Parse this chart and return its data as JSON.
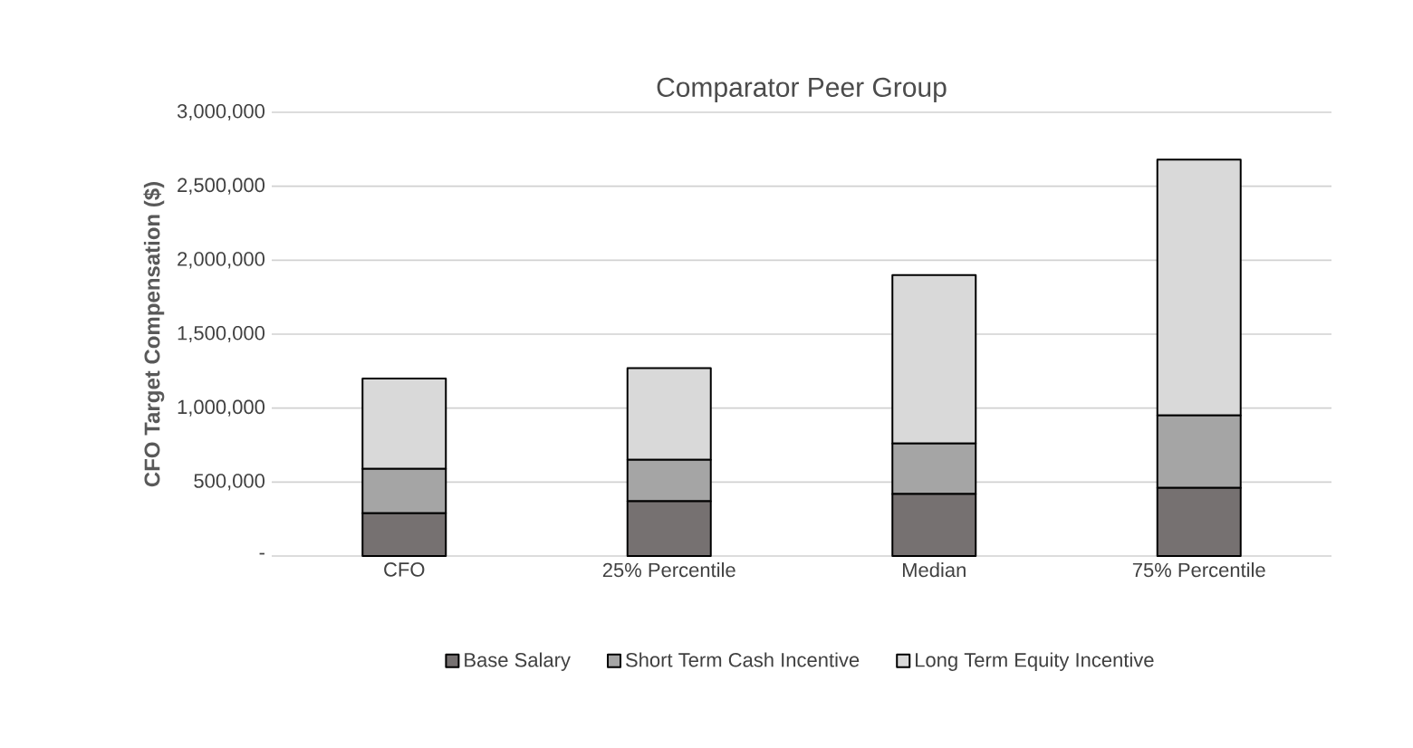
{
  "chart_data": {
    "type": "bar",
    "title": "Comparator Peer Group",
    "ylabel": "CFO Target Compensation ($)",
    "stacked": true,
    "categories": [
      "CFO",
      "25% Percentile",
      "Median",
      "75% Percentile"
    ],
    "series": [
      {
        "name": "Base Salary",
        "color": "#767171",
        "values": [
          290000,
          370000,
          420000,
          460000
        ]
      },
      {
        "name": "Short Term Cash Incentive",
        "color": "#a5a5a5",
        "values": [
          300000,
          280000,
          340000,
          490000
        ]
      },
      {
        "name": "Long Term Equity Incentive",
        "color": "#d9d9d9",
        "values": [
          610000,
          620000,
          1140000,
          1730000
        ]
      }
    ],
    "ylim": [
      0,
      3000000
    ],
    "yticks": [
      {
        "value": 0,
        "label": "-"
      },
      {
        "value": 500000,
        "label": "500,000"
      },
      {
        "value": 1000000,
        "label": "1,000,000"
      },
      {
        "value": 1500000,
        "label": "1,500,000"
      },
      {
        "value": 2000000,
        "label": "2,000,000"
      },
      {
        "value": 2500000,
        "label": "2,500,000"
      },
      {
        "value": 3000000,
        "label": "3,000,000"
      }
    ],
    "grid": "y",
    "legend": "bottom"
  }
}
